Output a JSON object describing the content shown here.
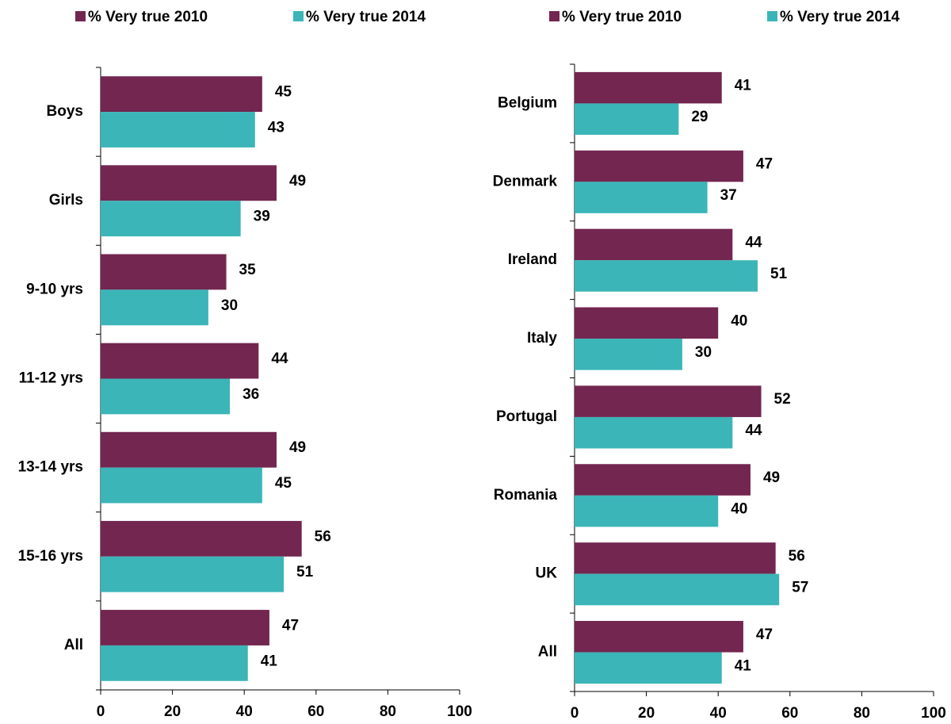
{
  "chart_data": [
    {
      "type": "bar",
      "orientation": "horizontal",
      "categories": [
        "Boys",
        "Girls",
        "9-10 yrs",
        "11-12 yrs",
        "13-14 yrs",
        "15-16 yrs",
        "All"
      ],
      "series": [
        {
          "name": "% Very true 2010",
          "color": "#722650",
          "values": [
            45,
            49,
            35,
            44,
            49,
            56,
            47
          ]
        },
        {
          "name": "% Very true 2014",
          "color": "#3bb5b8",
          "values": [
            43,
            39,
            30,
            36,
            45,
            51,
            41
          ]
        }
      ],
      "xlim": [
        0,
        100
      ],
      "xticks": [
        0,
        20,
        40,
        60,
        80,
        100
      ],
      "legend": "top"
    },
    {
      "type": "bar",
      "orientation": "horizontal",
      "categories": [
        "Belgium",
        "Denmark",
        "Ireland",
        "Italy",
        "Portugal",
        "Romania",
        "UK",
        "All"
      ],
      "series": [
        {
          "name": "% Very true 2010",
          "color": "#722650",
          "values": [
            41,
            47,
            44,
            40,
            52,
            49,
            56,
            47
          ]
        },
        {
          "name": "% Very true 2014",
          "color": "#3bb5b8",
          "values": [
            29,
            37,
            51,
            30,
            44,
            40,
            57,
            41
          ]
        }
      ],
      "xlim": [
        0,
        100
      ],
      "xticks": [
        0,
        20,
        40,
        60,
        80,
        100
      ],
      "legend": "top"
    }
  ]
}
